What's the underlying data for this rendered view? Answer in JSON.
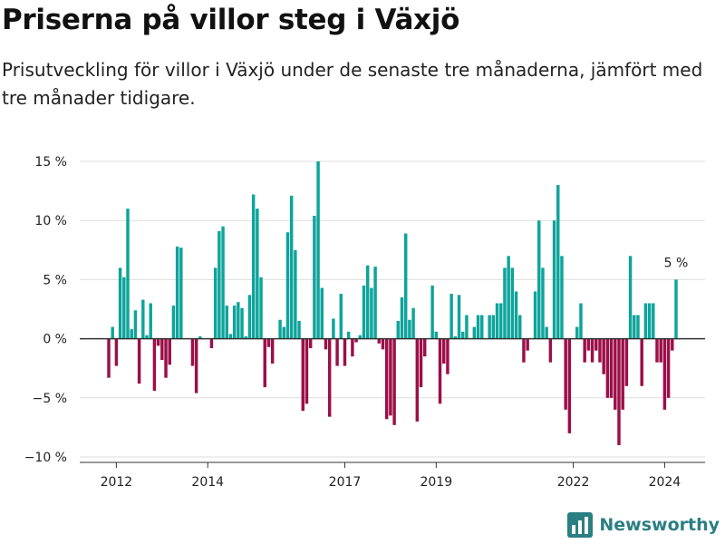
{
  "title": "Priserna på villor steg i Växjö",
  "subtitle": "Prisutveckling för villor i Växjö under de senaste tre månaderna, jämfört med tre månader tidigare.",
  "brand": {
    "name": "Newsworthy",
    "icon": "bar-chart-logo-icon"
  },
  "colors": {
    "positive": "#0ea49b",
    "negative": "#9c0f48",
    "grid": "#dddddd",
    "zero_line": "#333333",
    "brand": "#2a7f83"
  },
  "chart_data": {
    "type": "bar",
    "x_start": "2011-11",
    "x_step": "month",
    "ylim": [
      -10,
      15
    ],
    "yticks": [
      15,
      10,
      5,
      0,
      -5,
      -10
    ],
    "ytick_labels": [
      "15 %",
      "10 %",
      "5 %",
      "0 %",
      "−5 %",
      "−10 %"
    ],
    "xtick_labels": [
      "2012",
      "2014",
      "2017",
      "2019",
      "2022",
      "2024"
    ],
    "xtick_positions": [
      "2012-01",
      "2014-01",
      "2017-01",
      "2019-01",
      "2022-01",
      "2024-01"
    ],
    "annotation": {
      "text": "5 %",
      "at": "2024-04"
    },
    "values": [
      -3.3,
      1.0,
      -2.3,
      6.0,
      5.2,
      11.0,
      0.8,
      2.4,
      -3.8,
      3.3,
      0.3,
      3.0,
      -4.4,
      -0.6,
      -1.8,
      -3.3,
      -2.2,
      2.8,
      7.8,
      7.7,
      0.0,
      0.0,
      -2.3,
      -4.6,
      0.2,
      0.0,
      0.0,
      -0.8,
      6.0,
      9.1,
      9.5,
      2.8,
      0.4,
      2.8,
      3.1,
      2.6,
      0.2,
      3.7,
      12.2,
      11.0,
      5.2,
      -4.1,
      -0.7,
      -2.1,
      0.0,
      1.6,
      1.0,
      9.0,
      12.1,
      7.5,
      1.5,
      -6.1,
      -5.5,
      -0.8,
      10.4,
      15.0,
      4.3,
      -0.9,
      -6.6,
      1.7,
      -2.3,
      3.8,
      -2.3,
      0.6,
      -1.5,
      -0.3,
      0.3,
      4.5,
      6.2,
      4.3,
      6.1,
      -0.4,
      -0.9,
      -6.8,
      -6.5,
      -7.3,
      1.5,
      3.5,
      8.9,
      1.6,
      2.6,
      -7.0,
      -4.1,
      -1.5,
      0.0,
      4.5,
      0.6,
      -5.5,
      -2.1,
      -3.0,
      3.8,
      0.2,
      3.7,
      0.6,
      2.0,
      0.0,
      1.0,
      2.0,
      2.0,
      0.0,
      2.0,
      2.0,
      3.0,
      3.0,
      6.0,
      7.0,
      6.0,
      4.0,
      2.0,
      -2.0,
      -1.0,
      0.0,
      4.0,
      10.0,
      6.0,
      1.0,
      -2.0,
      10.0,
      13.0,
      7.0,
      -6.0,
      -8.0,
      0.0,
      1.0,
      3.0,
      -2.0,
      -1.0,
      -2.0,
      -1.0,
      -2.0,
      -3.0,
      -5.0,
      -5.0,
      -6.0,
      -9.0,
      -6.0,
      -4.0,
      7.0,
      2.0,
      2.0,
      -4.0,
      3.0,
      3.0,
      3.0,
      -2.0,
      -2.0,
      -6.0,
      -5.0,
      -1.0,
      5.0
    ]
  }
}
